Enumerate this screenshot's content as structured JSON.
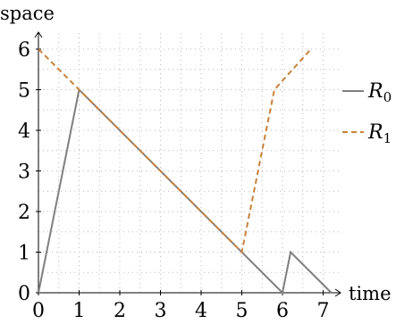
{
  "chart_data": {
    "type": "line",
    "xlabel": "time",
    "ylabel": "space",
    "xlim": [
      0,
      7.3
    ],
    "ylim": [
      0,
      6.4
    ],
    "xticks": [
      "0",
      "1",
      "2",
      "3",
      "4",
      "5",
      "6",
      "7"
    ],
    "yticks": [
      "0",
      "1",
      "2",
      "3",
      "4",
      "5",
      "6"
    ],
    "grid": "dotted",
    "legend_position": "right",
    "series": [
      {
        "name": "R",
        "subscript": "0",
        "style": "solid",
        "color": "#7f7f7f",
        "points": [
          [
            0,
            0
          ],
          [
            1,
            5
          ],
          [
            6,
            0
          ],
          [
            6.2,
            1
          ],
          [
            7.2,
            0
          ]
        ]
      },
      {
        "name": "R",
        "subscript": "1",
        "style": "dashed",
        "color": "#c8833a",
        "points": [
          [
            0,
            6
          ],
          [
            1,
            5
          ],
          [
            5,
            1
          ],
          [
            5.8,
            5
          ],
          [
            6.7,
            6
          ]
        ]
      }
    ]
  }
}
